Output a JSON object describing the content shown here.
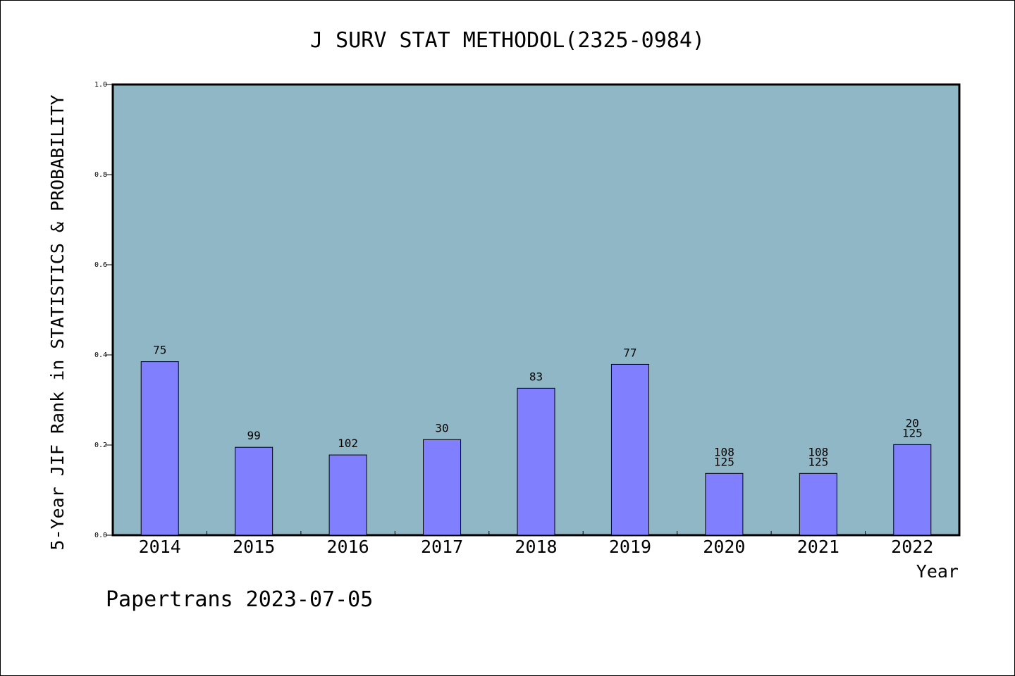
{
  "footer": {
    "note": "Papertrans 2023-07-05"
  },
  "colors": {
    "plot_background": "#8fb7c5",
    "bar_fill": "#8080ff",
    "bar_stroke": "#000000"
  },
  "chart_data": {
    "type": "bar",
    "title": "J SURV STAT METHODOL(2325-0984)",
    "xlabel": "Year",
    "ylabel": "5-Year JIF Rank in STATISTICS & PROBABILITY",
    "ylim": [
      0,
      1.0
    ],
    "yticks": [
      "0.0",
      "0.2",
      "0.4",
      "0.6",
      "0.8",
      "1.0"
    ],
    "grid": false,
    "categories": [
      "2014",
      "2015",
      "2016",
      "2017",
      "2018",
      "2019",
      "2020",
      "2021",
      "2022"
    ],
    "values": [
      0.385,
      0.195,
      0.178,
      0.212,
      0.326,
      0.379,
      0.137,
      0.137,
      0.201
    ],
    "bar_labels": [
      [
        "75"
      ],
      [
        "99"
      ],
      [
        "102"
      ],
      [
        "30"
      ],
      [
        "83"
      ],
      [
        "77"
      ],
      [
        "108",
        "125"
      ],
      [
        "108",
        "125"
      ],
      [
        "20",
        "125"
      ]
    ]
  }
}
